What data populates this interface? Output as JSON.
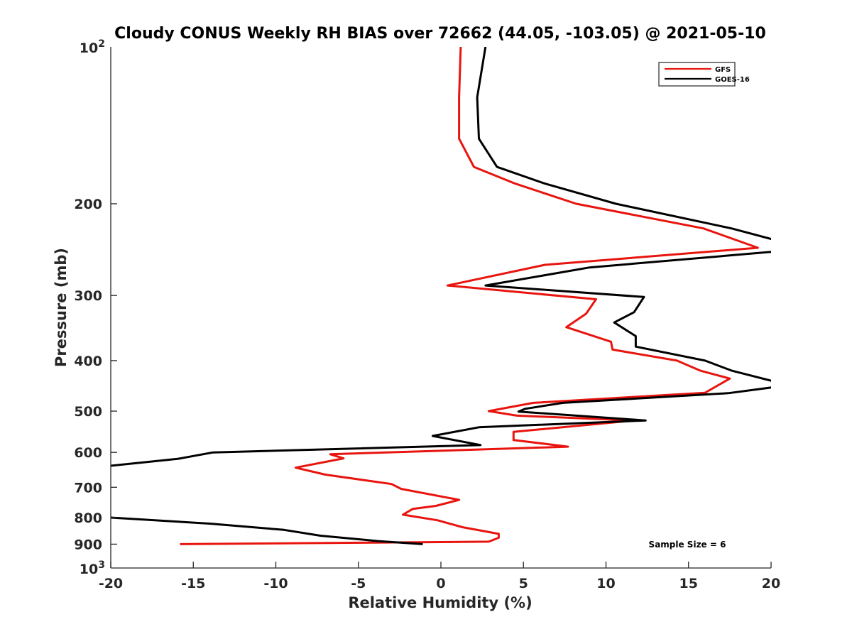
{
  "chart_data": {
    "type": "line",
    "title": "Cloudy CONUS Weekly RH BIAS over 72662 (44.05, -103.05) @ 2021-05-10",
    "xlabel": "Relative Humidity (%)",
    "ylabel": "Pressure (mb)",
    "xlim": [
      -20,
      20
    ],
    "ylim": [
      100,
      1000
    ],
    "y_scale": "log",
    "y_reversed": true,
    "grid": false,
    "legend_position": "top-right",
    "x_ticks": [
      -20,
      -15,
      -10,
      -5,
      0,
      5,
      10,
      15,
      20
    ],
    "x_tick_labels": [
      "-20",
      "-15",
      "-10",
      "-5",
      "0",
      "5",
      "10",
      "15",
      "20"
    ],
    "y_ticks": [
      200,
      300,
      400,
      500,
      600,
      700,
      800,
      900
    ],
    "y_tick_labels": [
      "200",
      "300",
      "400",
      "500",
      "600",
      "700",
      "800",
      "900"
    ],
    "y_decade_labels": [
      {
        "value": 100,
        "base": "10",
        "exp": "2"
      },
      {
        "value": 1000,
        "base": "10",
        "exp": "3"
      }
    ],
    "annotation": "Sample Size = 6",
    "series": [
      {
        "name": "GFS",
        "color": "#e8150f",
        "points": [
          [
            1.2,
            100
          ],
          [
            1.1,
            125
          ],
          [
            1.1,
            150
          ],
          [
            2.0,
            170
          ],
          [
            4.5,
            183
          ],
          [
            8.2,
            200
          ],
          [
            15.9,
            223
          ],
          [
            19.2,
            243
          ],
          [
            6.3,
            262
          ],
          [
            0.4,
            287
          ],
          [
            9.4,
            305
          ],
          [
            8.8,
            325
          ],
          [
            7.6,
            345
          ],
          [
            10.3,
            368
          ],
          [
            10.4,
            381
          ],
          [
            14.3,
            400
          ],
          [
            15.7,
            418
          ],
          [
            17.5,
            433
          ],
          [
            16.0,
            461
          ],
          [
            5.6,
            482
          ],
          [
            2.9,
            500
          ],
          [
            4.6,
            510
          ],
          [
            11.7,
            521
          ],
          [
            4.4,
            548
          ],
          [
            4.4,
            568
          ],
          [
            7.7,
            585
          ],
          [
            -6.7,
            605
          ],
          [
            -5.9,
            616
          ],
          [
            -8.8,
            642
          ],
          [
            -7.0,
            662
          ],
          [
            -3.0,
            690
          ],
          [
            -2.4,
            705
          ],
          [
            1.1,
            740
          ],
          [
            -0.3,
            760
          ],
          [
            -1.7,
            770
          ],
          [
            -2.3,
            790
          ],
          [
            -0.2,
            810
          ],
          [
            1.3,
            835
          ],
          [
            3.5,
            860
          ],
          [
            3.5,
            875
          ],
          [
            2.9,
            890
          ],
          [
            -15.8,
            900
          ]
        ]
      },
      {
        "name": "GOES-16",
        "color": "#000000",
        "points": [
          [
            2.7,
            100
          ],
          [
            2.2,
            125
          ],
          [
            2.3,
            150
          ],
          [
            3.4,
            170
          ],
          [
            6.3,
            183
          ],
          [
            10.6,
            200
          ],
          [
            17.6,
            223
          ],
          [
            20.3,
            235
          ],
          [
            20.3,
            247
          ],
          [
            9.0,
            265
          ],
          [
            2.7,
            287
          ],
          [
            12.3,
            302
          ],
          [
            11.7,
            323
          ],
          [
            10.5,
            338
          ],
          [
            11.8,
            359
          ],
          [
            11.8,
            376
          ],
          [
            16.0,
            400
          ],
          [
            17.6,
            418
          ],
          [
            20.1,
            438
          ],
          [
            20.1,
            450
          ],
          [
            17.4,
            462
          ],
          [
            7.4,
            482
          ],
          [
            5.1,
            495
          ],
          [
            4.7,
            501
          ],
          [
            12.4,
            521
          ],
          [
            2.3,
            537
          ],
          [
            -0.5,
            558
          ],
          [
            2.4,
            581
          ],
          [
            -13.8,
            600
          ],
          [
            -15.9,
            617
          ],
          [
            -20.1,
            637
          ],
          [
            -20.1,
            800
          ],
          [
            -14.0,
            822
          ],
          [
            -9.5,
            845
          ],
          [
            -7.3,
            867
          ],
          [
            -3.8,
            888
          ],
          [
            -1.1,
            900
          ]
        ]
      }
    ]
  }
}
